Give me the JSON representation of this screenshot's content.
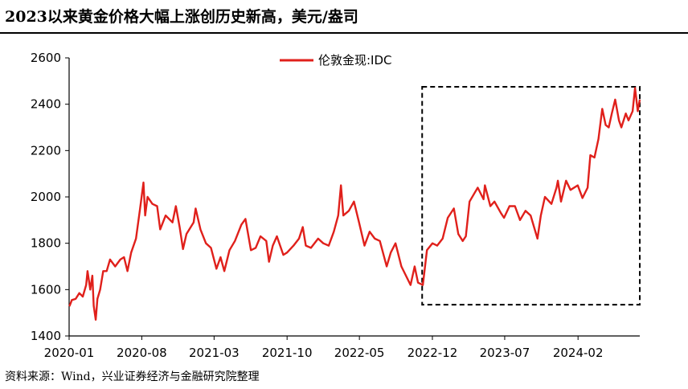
{
  "title": "2023以来黄金价格大幅上涨创历史新高，美元/盎司",
  "source": "资料来源：Wind，兴业证券经济与金融研究院整理",
  "colors": {
    "series": "#e0201b",
    "axis": "#000000",
    "highlight_box": "#000000"
  },
  "chart_data": {
    "type": "line",
    "title": "2023以来黄金价格大幅上涨创历史新高，美元/盎司",
    "xlabel": "",
    "ylabel": "",
    "x_tick_labels": [
      "2020-01",
      "2020-08",
      "2021-03",
      "2021-10",
      "2022-05",
      "2022-12",
      "2023-07",
      "2024-02"
    ],
    "y_ticks": [
      1400,
      1600,
      1800,
      2000,
      2200,
      2400,
      2600
    ],
    "ylim": [
      1400,
      2600
    ],
    "xlim": [
      "2020-01-01",
      "2024-07-31"
    ],
    "grid": false,
    "legend_position": "top-center",
    "annotations": [
      {
        "type": "dashed-box",
        "from": "2022-11-01",
        "to": "2024-07-31",
        "y_range": [
          1535,
          2475
        ]
      }
    ],
    "series": [
      {
        "name": "伦敦金现:IDC",
        "points": [
          [
            "2020-01-02",
            1528
          ],
          [
            "2020-01-09",
            1555
          ],
          [
            "2020-01-20",
            1560
          ],
          [
            "2020-01-31",
            1585
          ],
          [
            "2020-02-10",
            1570
          ],
          [
            "2020-02-20",
            1620
          ],
          [
            "2020-02-24",
            1680
          ],
          [
            "2020-03-03",
            1600
          ],
          [
            "2020-03-09",
            1660
          ],
          [
            "2020-03-13",
            1530
          ],
          [
            "2020-03-19",
            1470
          ],
          [
            "2020-03-24",
            1560
          ],
          [
            "2020-04-01",
            1600
          ],
          [
            "2020-04-10",
            1680
          ],
          [
            "2020-04-20",
            1680
          ],
          [
            "2020-04-30",
            1730
          ],
          [
            "2020-05-15",
            1700
          ],
          [
            "2020-05-30",
            1730
          ],
          [
            "2020-06-10",
            1740
          ],
          [
            "2020-06-20",
            1680
          ],
          [
            "2020-07-01",
            1760
          ],
          [
            "2020-07-15",
            1820
          ],
          [
            "2020-07-27",
            1950
          ],
          [
            "2020-08-06",
            2062
          ],
          [
            "2020-08-11",
            1920
          ],
          [
            "2020-08-18",
            2000
          ],
          [
            "2020-09-01",
            1970
          ],
          [
            "2020-09-15",
            1960
          ],
          [
            "2020-09-24",
            1860
          ],
          [
            "2020-10-10",
            1920
          ],
          [
            "2020-10-30",
            1890
          ],
          [
            "2020-11-09",
            1960
          ],
          [
            "2020-11-20",
            1870
          ],
          [
            "2020-11-30",
            1775
          ],
          [
            "2020-12-10",
            1840
          ],
          [
            "2020-12-31",
            1890
          ],
          [
            "2021-01-06",
            1950
          ],
          [
            "2021-01-20",
            1860
          ],
          [
            "2021-02-05",
            1800
          ],
          [
            "2021-02-20",
            1780
          ],
          [
            "2021-03-08",
            1690
          ],
          [
            "2021-03-20",
            1740
          ],
          [
            "2021-03-31",
            1680
          ],
          [
            "2021-04-15",
            1770
          ],
          [
            "2021-05-01",
            1810
          ],
          [
            "2021-05-20",
            1880
          ],
          [
            "2021-06-01",
            1905
          ],
          [
            "2021-06-17",
            1770
          ],
          [
            "2021-07-01",
            1780
          ],
          [
            "2021-07-15",
            1830
          ],
          [
            "2021-08-01",
            1810
          ],
          [
            "2021-08-09",
            1720
          ],
          [
            "2021-08-20",
            1790
          ],
          [
            "2021-09-01",
            1830
          ],
          [
            "2021-09-20",
            1750
          ],
          [
            "2021-10-01",
            1760
          ],
          [
            "2021-10-20",
            1790
          ],
          [
            "2021-11-05",
            1820
          ],
          [
            "2021-11-16",
            1870
          ],
          [
            "2021-11-25",
            1790
          ],
          [
            "2021-12-10",
            1780
          ],
          [
            "2021-12-31",
            1820
          ],
          [
            "2022-01-15",
            1800
          ],
          [
            "2022-01-31",
            1790
          ],
          [
            "2022-02-15",
            1850
          ],
          [
            "2022-02-28",
            1920
          ],
          [
            "2022-03-08",
            2050
          ],
          [
            "2022-03-15",
            1920
          ],
          [
            "2022-03-31",
            1940
          ],
          [
            "2022-04-15",
            1980
          ],
          [
            "2022-04-30",
            1890
          ],
          [
            "2022-05-16",
            1790
          ],
          [
            "2022-05-31",
            1850
          ],
          [
            "2022-06-15",
            1820
          ],
          [
            "2022-06-30",
            1810
          ],
          [
            "2022-07-20",
            1700
          ],
          [
            "2022-08-01",
            1760
          ],
          [
            "2022-08-15",
            1800
          ],
          [
            "2022-09-01",
            1700
          ],
          [
            "2022-09-28",
            1620
          ],
          [
            "2022-10-10",
            1700
          ],
          [
            "2022-10-20",
            1630
          ],
          [
            "2022-11-03",
            1620
          ],
          [
            "2022-11-15",
            1770
          ],
          [
            "2022-12-01",
            1800
          ],
          [
            "2022-12-15",
            1790
          ],
          [
            "2022-12-31",
            1820
          ],
          [
            "2023-01-15",
            1910
          ],
          [
            "2023-02-02",
            1950
          ],
          [
            "2023-02-15",
            1840
          ],
          [
            "2023-02-28",
            1810
          ],
          [
            "2023-03-09",
            1830
          ],
          [
            "2023-03-20",
            1980
          ],
          [
            "2023-04-05",
            2020
          ],
          [
            "2023-04-13",
            2040
          ],
          [
            "2023-04-30",
            1990
          ],
          [
            "2023-05-04",
            2050
          ],
          [
            "2023-05-20",
            1960
          ],
          [
            "2023-06-01",
            1980
          ],
          [
            "2023-06-20",
            1930
          ],
          [
            "2023-06-29",
            1910
          ],
          [
            "2023-07-15",
            1960
          ],
          [
            "2023-07-31",
            1960
          ],
          [
            "2023-08-15",
            1900
          ],
          [
            "2023-08-31",
            1940
          ],
          [
            "2023-09-15",
            1920
          ],
          [
            "2023-10-05",
            1820
          ],
          [
            "2023-10-15",
            1920
          ],
          [
            "2023-10-27",
            2000
          ],
          [
            "2023-11-15",
            1970
          ],
          [
            "2023-11-30",
            2040
          ],
          [
            "2023-12-04",
            2070
          ],
          [
            "2023-12-13",
            1980
          ],
          [
            "2023-12-28",
            2070
          ],
          [
            "2024-01-10",
            2030
          ],
          [
            "2024-01-31",
            2050
          ],
          [
            "2024-02-14",
            1995
          ],
          [
            "2024-02-29",
            2040
          ],
          [
            "2024-03-08",
            2180
          ],
          [
            "2024-03-20",
            2170
          ],
          [
            "2024-04-01",
            2250
          ],
          [
            "2024-04-12",
            2380
          ],
          [
            "2024-04-22",
            2310
          ],
          [
            "2024-05-01",
            2300
          ],
          [
            "2024-05-10",
            2360
          ],
          [
            "2024-05-20",
            2420
          ],
          [
            "2024-05-31",
            2330
          ],
          [
            "2024-06-07",
            2300
          ],
          [
            "2024-06-20",
            2360
          ],
          [
            "2024-06-28",
            2330
          ],
          [
            "2024-07-10",
            2370
          ],
          [
            "2024-07-17",
            2470
          ],
          [
            "2024-07-25",
            2370
          ],
          [
            "2024-07-31",
            2420
          ]
        ]
      }
    ]
  }
}
